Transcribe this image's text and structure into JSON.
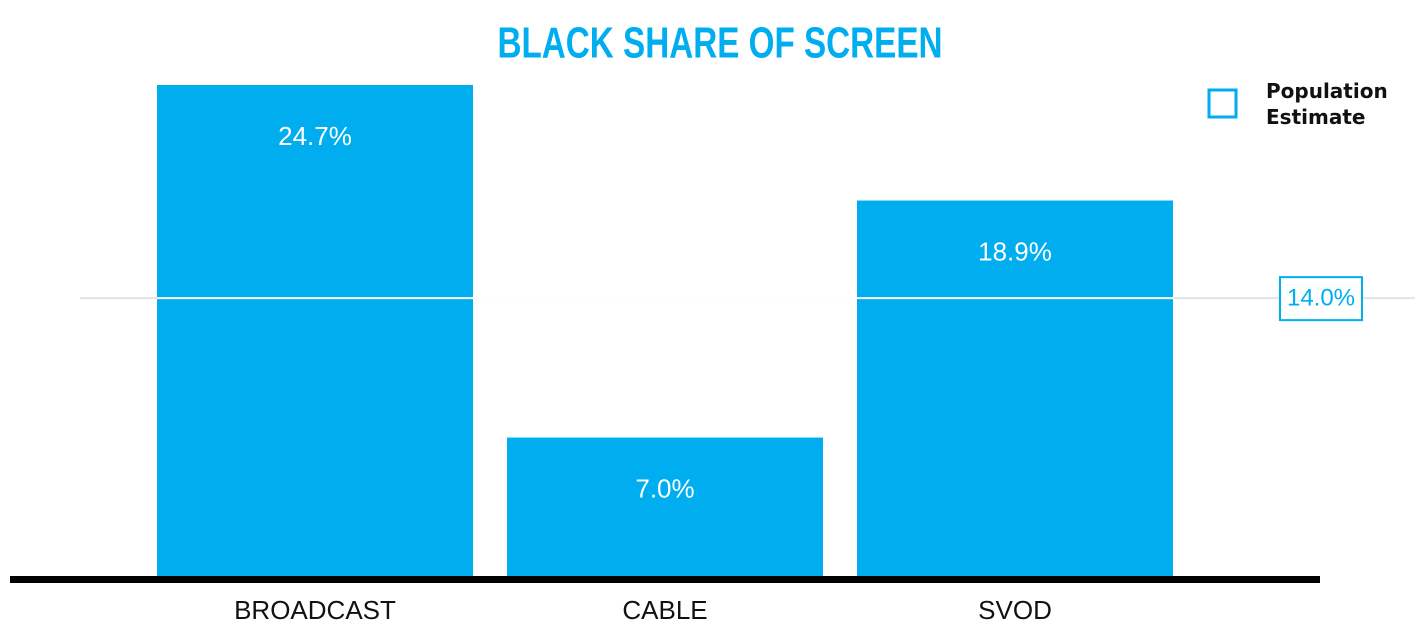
{
  "chart_data": {
    "type": "bar",
    "title": "BLACK SHARE OF SCREEN",
    "categories": [
      "BROADCAST",
      "CABLE",
      "SVOD"
    ],
    "values": [
      24.7,
      7.0,
      18.9
    ],
    "value_labels": [
      "24.7%",
      "7.0%",
      "18.9%"
    ],
    "color": "#00aeef",
    "reference_line": {
      "name": "Population Estimate",
      "value": 14.0,
      "label": "14.0%"
    }
  }
}
